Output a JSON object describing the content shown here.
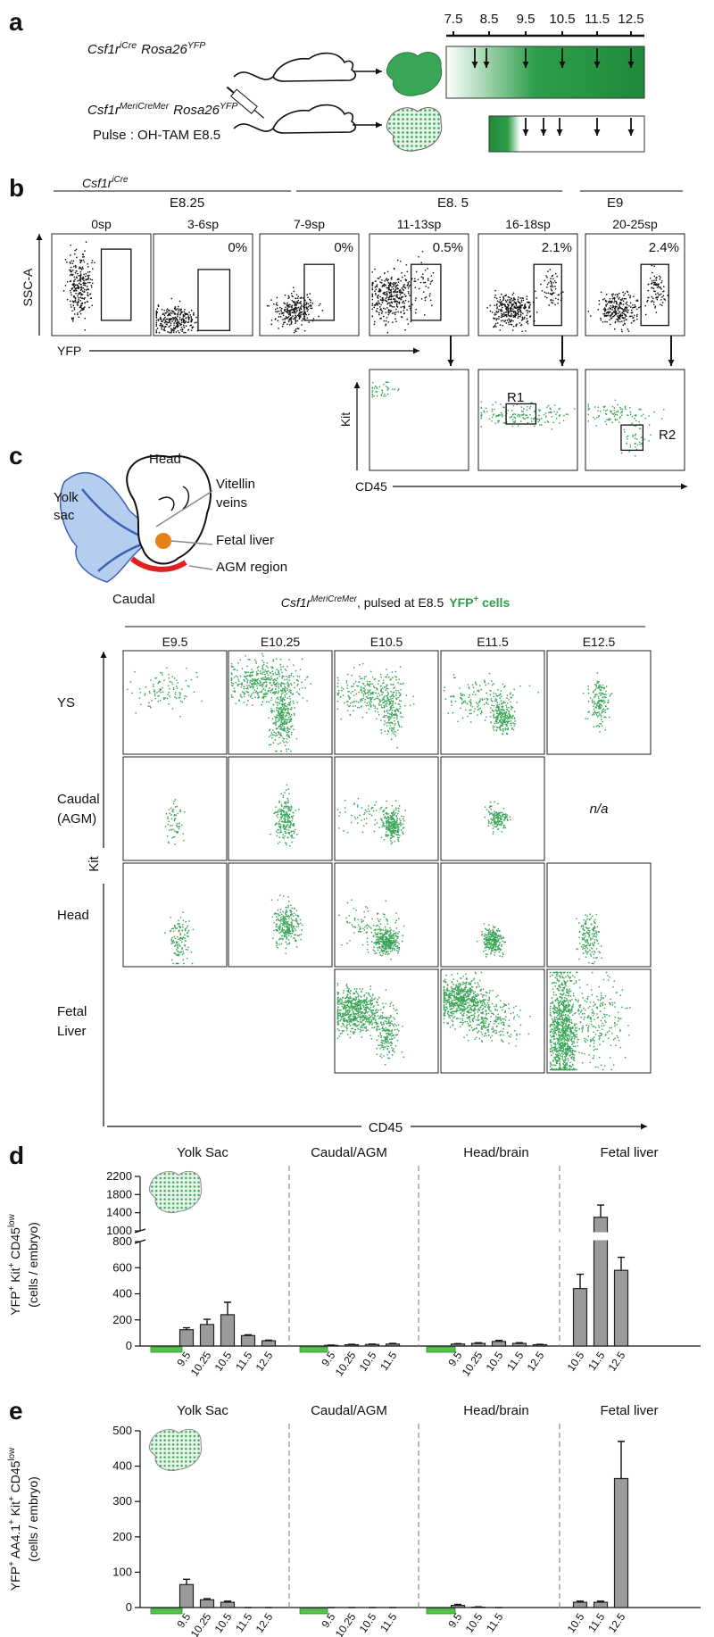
{
  "panel_a": {
    "label": "a",
    "line1": {
      "gene": "Csf1r",
      "gene_sup": "iCre",
      "reporter": "Rosa26",
      "reporter_sup": "YFP"
    },
    "line2": {
      "gene": "Csf1r",
      "gene_sup": "MeriCreMer",
      "reporter": "Rosa26",
      "reporter_sup": "YFP"
    },
    "pulse": "Pulse : OH-TAM E8.5",
    "timeline": [
      "7.5",
      "8.5",
      "9.5",
      "10.5",
      "11.5",
      "12.5"
    ]
  },
  "panel_b": {
    "label": "b",
    "genotype": {
      "gene": "Csf1r",
      "gene_sup": "iCre"
    },
    "stages": [
      "E8.25",
      "E8. 5",
      "E9"
    ],
    "plots": [
      {
        "somites": "0sp"
      },
      {
        "somites": "3-6sp",
        "percent": "0%"
      },
      {
        "somites": "7-9sp",
        "percent": "0%"
      },
      {
        "somites": "11-13sp",
        "percent": "0.5%"
      },
      {
        "somites": "16-18sp",
        "percent": "2.1%"
      },
      {
        "somites": "20-25sp",
        "percent": "2.4%"
      }
    ],
    "y_axis": "SSC-A",
    "x_axis": "YFP",
    "kit_axis": "Kit",
    "cd45_axis": "CD45",
    "gates": [
      "R1",
      "R2"
    ]
  },
  "panel_c": {
    "label": "c",
    "diagram": {
      "head": "Head",
      "yolk_sac": [
        "Yolk",
        "sac"
      ],
      "vitellin": [
        "Vitellin",
        "veins"
      ],
      "fetal_liver": "Fetal liver",
      "agm": "AGM region",
      "caudal": "Caudal"
    },
    "title": {
      "gene": "Csf1r",
      "gene_sup": "MeriCreMer",
      "text": ", pulsed at E8.5",
      "cells": "YFP",
      "cells_sup": "+",
      "cells_text": " cells"
    },
    "columns": [
      "E9.5",
      "E10.25",
      "E10.5",
      "E11.5",
      "E12.5"
    ],
    "rows": [
      [
        "YS"
      ],
      [
        "Caudal",
        "(AGM)"
      ],
      [
        "Head"
      ],
      [
        "Fetal",
        "Liver"
      ]
    ],
    "na": "n/a",
    "y_axis": "Kit",
    "x_axis": "CD45"
  },
  "chart_data": [
    {
      "type": "bar",
      "label": "d",
      "y_label": [
        {
          "text": "YFP",
          "sup": "+"
        },
        {
          "text": " Kit",
          "sup": "+"
        },
        {
          "text": " CD45",
          "sup": "low"
        }
      ],
      "y_label_2": "(cells / embryo)",
      "color": "#9a9a9a",
      "ylim": [
        0,
        2200
      ],
      "axis_break": [
        800,
        1000
      ],
      "yticks": [
        0,
        200,
        400,
        600,
        800,
        1000,
        1400,
        1800,
        2200
      ],
      "groups": [
        {
          "name": "Yolk Sac",
          "categories": [
            "9.5",
            "10.25",
            "10.5",
            "11.5",
            "12.5"
          ],
          "values": [
            125,
            165,
            240,
            80,
            40
          ],
          "errors": [
            15,
            40,
            95,
            6,
            5
          ]
        },
        {
          "name": "Caudal/AGM",
          "categories": [
            "9.5",
            "10.25",
            "10.5",
            "11.5"
          ],
          "values": [
            5,
            10,
            12,
            15
          ],
          "errors": [
            2,
            3,
            3,
            5
          ]
        },
        {
          "name": "Head/brain",
          "categories": [
            "9.5",
            "10.25",
            "10.5",
            "11.5",
            "12.5"
          ],
          "values": [
            15,
            20,
            35,
            20,
            10
          ],
          "errors": [
            3,
            5,
            8,
            5,
            3
          ]
        },
        {
          "name": "Fetal liver",
          "categories": [
            "10.5",
            "11.5",
            "12.5"
          ],
          "values": [
            440,
            1300,
            580
          ],
          "errors": [
            110,
            270,
            100
          ]
        }
      ]
    },
    {
      "type": "bar",
      "label": "e",
      "y_label": [
        {
          "text": "YFP",
          "sup": "+"
        },
        {
          "text": " AA4.1",
          "sup": "+"
        },
        {
          "text": " Kit",
          "sup": "+"
        },
        {
          "text": " CD45",
          "sup": "low"
        }
      ],
      "y_label_2": "(cells / embryo)",
      "color": "#9a9a9a",
      "ylim": [
        0,
        500
      ],
      "yticks": [
        0,
        100,
        200,
        300,
        400,
        500
      ],
      "groups": [
        {
          "name": "Yolk Sac",
          "categories": [
            "9.5",
            "10.25",
            "10.5",
            "11.5",
            "12.5"
          ],
          "values": [
            65,
            22,
            15,
            0,
            0
          ],
          "errors": [
            15,
            3,
            3,
            0,
            0
          ]
        },
        {
          "name": "Caudal/AGM",
          "categories": [
            "9.5",
            "10.25",
            "10.5",
            "11.5"
          ],
          "values": [
            0,
            0,
            0,
            0
          ],
          "errors": [
            0,
            0,
            0,
            0
          ]
        },
        {
          "name": "Head/brain",
          "categories": [
            "9.5",
            "10.5",
            "11.5"
          ],
          "values": [
            6,
            1,
            0
          ],
          "errors": [
            3,
            1,
            0
          ]
        },
        {
          "name": "Fetal liver",
          "categories": [
            "10.5",
            "11.5",
            "12.5"
          ],
          "values": [
            15,
            15,
            365
          ],
          "errors": [
            3,
            3,
            105
          ]
        }
      ]
    }
  ]
}
